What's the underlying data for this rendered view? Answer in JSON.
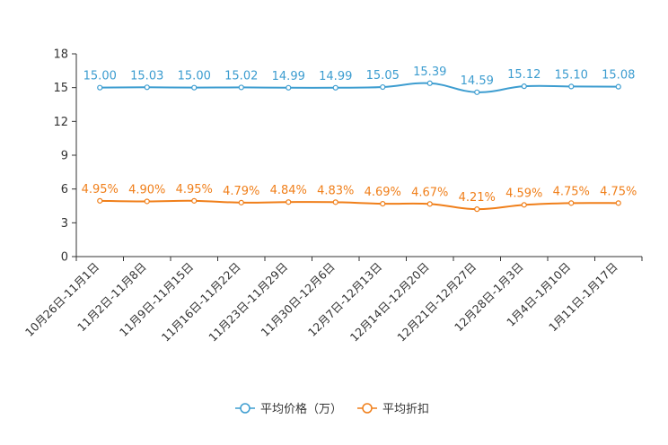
{
  "chart_data": {
    "type": "line",
    "title": "",
    "xlabel": "",
    "ylabel": "",
    "ylim": [
      0,
      18
    ],
    "yticks": [
      "0",
      "3",
      "6",
      "9",
      "12",
      "15",
      "18"
    ],
    "grid": false,
    "legend_position": "bottom-center",
    "categories": [
      "10月26日-11月1日",
      "11月2日-11月8日",
      "11月9日-11月15日",
      "11月16日-11月22日",
      "11月23日-11月29日",
      "11月30日-12月6日",
      "12月7日-12月13日",
      "12月14日-12月20日",
      "12月21日-12月27日",
      "12月28日-1月3日",
      "1月4日-1月10日",
      "1月11日-1月17日"
    ],
    "series": [
      {
        "name": "平均价格（万）",
        "color": "#3d9dd0",
        "values": [
          15.0,
          15.03,
          15.0,
          15.02,
          14.99,
          14.99,
          15.05,
          15.39,
          14.59,
          15.12,
          15.1,
          15.08
        ],
        "labels": [
          "15.00",
          "15.03",
          "15.00",
          "15.02",
          "14.99",
          "14.99",
          "15.05",
          "15.39",
          "14.59",
          "15.12",
          "15.10",
          "15.08"
        ]
      },
      {
        "name": "平均折扣",
        "color": "#f07f1a",
        "values": [
          4.95,
          4.9,
          4.95,
          4.79,
          4.84,
          4.83,
          4.69,
          4.67,
          4.21,
          4.59,
          4.75,
          4.75
        ],
        "labels": [
          "4.95%",
          "4.90%",
          "4.95%",
          "4.79%",
          "4.84%",
          "4.83%",
          "4.69%",
          "4.67%",
          "4.21%",
          "4.59%",
          "4.75%",
          "4.75%"
        ]
      }
    ]
  }
}
